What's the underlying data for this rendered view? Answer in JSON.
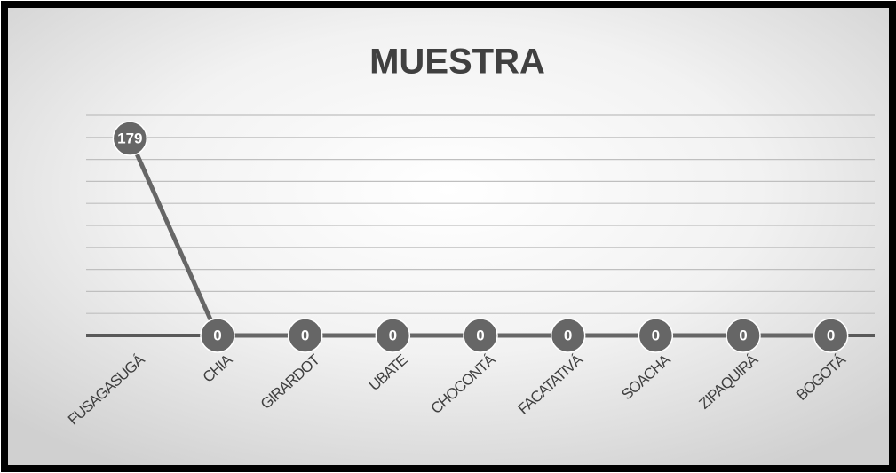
{
  "chart_data": {
    "type": "line",
    "title": "MUESTRA",
    "categories": [
      "FUSAGASUGÁ",
      "CHIA",
      "GIRARDOT",
      "UBATE",
      "CHOCONTÁ",
      "FACATATIVÁ",
      "SOACHA",
      "ZIPAQUIRÁ",
      "BOGOTÁ"
    ],
    "values": [
      179,
      0,
      0,
      0,
      0,
      0,
      0,
      0,
      0
    ],
    "color": "#666666",
    "ylim": [
      0,
      200
    ],
    "yticks": [
      0,
      20,
      40,
      60,
      80,
      100,
      120,
      140,
      160,
      180,
      200
    ],
    "grid": true
  }
}
